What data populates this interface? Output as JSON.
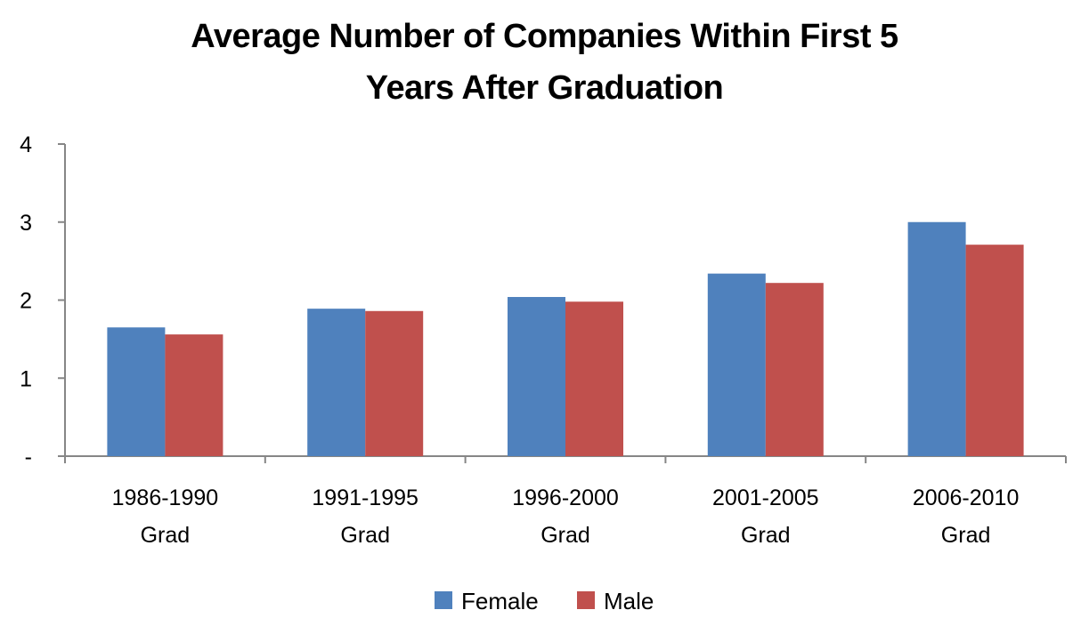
{
  "chart_data": {
    "type": "bar",
    "title_lines": [
      "Average Number of Companies  Within First 5",
      "Years After Graduation"
    ],
    "categories": [
      [
        "1986-1990",
        "Grad"
      ],
      [
        "1991-1995",
        "Grad"
      ],
      [
        "1996-2000",
        "Grad"
      ],
      [
        "2001-2005",
        "Grad"
      ],
      [
        "2006-2010",
        "Grad"
      ]
    ],
    "series": [
      {
        "name": "Female",
        "color": "#4F81BD",
        "values": [
          1.65,
          1.89,
          2.04,
          2.34,
          3.0
        ]
      },
      {
        "name": "Male",
        "color": "#C0504D",
        "values": [
          1.56,
          1.86,
          1.98,
          2.22,
          2.71
        ]
      }
    ],
    "yticks": [
      {
        "value": 0,
        "label": "-"
      },
      {
        "value": 1,
        "label": "1"
      },
      {
        "value": 2,
        "label": "2"
      },
      {
        "value": 3,
        "label": "3"
      },
      {
        "value": 4,
        "label": "4"
      }
    ],
    "ylim": [
      0,
      4
    ],
    "xlabel": "",
    "ylabel": "",
    "grid": false,
    "legend": "bottom"
  }
}
